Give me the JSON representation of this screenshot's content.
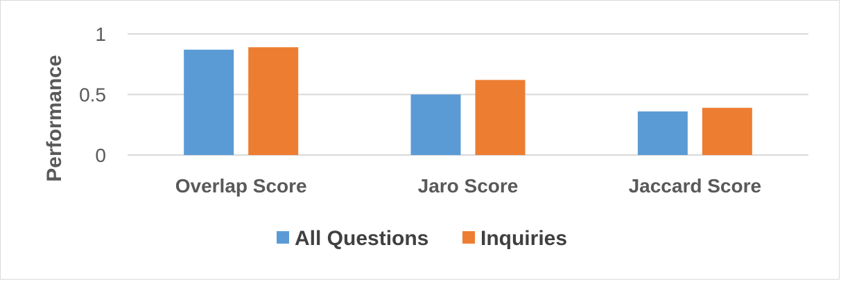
{
  "chart_data": {
    "type": "bar",
    "categories": [
      "Overlap Score",
      "Jaro Score",
      "Jaccard Score"
    ],
    "series": [
      {
        "name": "All Questions",
        "color": "#5b9bd5",
        "values": [
          0.87,
          0.5,
          0.36
        ]
      },
      {
        "name": "Inquiries",
        "color": "#ed7d31",
        "values": [
          0.89,
          0.62,
          0.39
        ]
      }
    ],
    "title": "",
    "xlabel": "",
    "ylabel": "Performance",
    "ylim": [
      0,
      1
    ],
    "yticks": [
      {
        "value": 0,
        "label": "0"
      },
      {
        "value": 0.5,
        "label": "0.5"
      },
      {
        "value": 1,
        "label": "1"
      }
    ],
    "grid": true,
    "legend": "bottom",
    "gridline_color": "#d9d9d9"
  }
}
